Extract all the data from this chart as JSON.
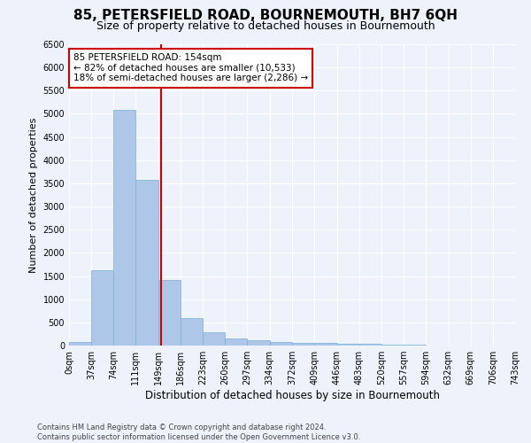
{
  "title": "85, PETERSFIELD ROAD, BOURNEMOUTH, BH7 6QH",
  "subtitle": "Size of property relative to detached houses in Bournemouth",
  "xlabel": "Distribution of detached houses by size in Bournemouth",
  "ylabel": "Number of detached properties",
  "footer_line1": "Contains HM Land Registry data © Crown copyright and database right 2024.",
  "footer_line2": "Contains public sector information licensed under the Open Government Licence v3.0.",
  "bar_edges": [
    0,
    37,
    74,
    111,
    149,
    186,
    223,
    260,
    297,
    334,
    372,
    409,
    446,
    483,
    520,
    557,
    594,
    632,
    669,
    706,
    743
  ],
  "bar_heights": [
    75,
    1630,
    5080,
    3580,
    1410,
    590,
    295,
    150,
    110,
    80,
    55,
    60,
    40,
    30,
    20,
    10,
    5,
    5,
    5,
    5
  ],
  "bar_color": "#aec6e8",
  "bar_edgecolor": "#7bafd4",
  "property_size": 154,
  "vline_color": "#cc0000",
  "annotation_text": "85 PETERSFIELD ROAD: 154sqm\n← 82% of detached houses are smaller (10,533)\n18% of semi-detached houses are larger (2,286) →",
  "annotation_box_edgecolor": "#cc0000",
  "annotation_box_facecolor": "#ffffff",
  "ylim": [
    0,
    6500
  ],
  "yticks": [
    0,
    500,
    1000,
    1500,
    2000,
    2500,
    3000,
    3500,
    4000,
    4500,
    5000,
    5500,
    6000,
    6500
  ],
  "background_color": "#eef2fb",
  "axes_background": "#eef2fb",
  "grid_color": "#ffffff",
  "title_fontsize": 11,
  "subtitle_fontsize": 9,
  "ylabel_fontsize": 8,
  "xlabel_fontsize": 8.5,
  "tick_label_fontsize": 7,
  "annotation_fontsize": 7.5,
  "footer_fontsize": 6
}
